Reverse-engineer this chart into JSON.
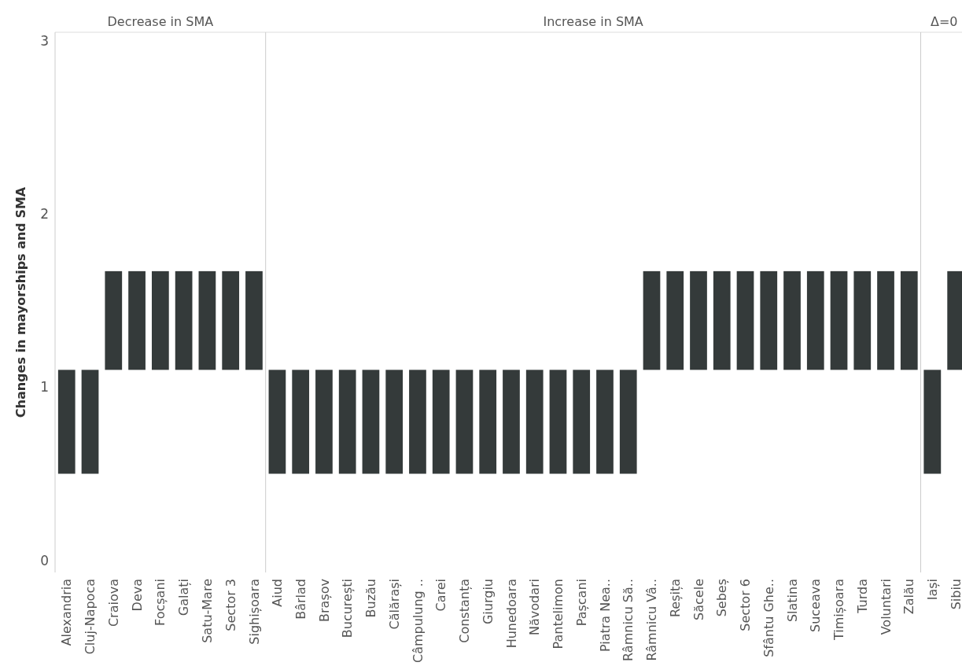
{
  "chart_data": [
    {
      "type": "bar",
      "title": "Decrease in SMA",
      "ylabel": "Changes in mayorships and SMA",
      "categories": [
        "Alexandria",
        "Cluj-Napoca",
        "Craiova",
        "Deva",
        "Focșani",
        "Galați",
        "Satu-Mare",
        "Sector 3",
        "Sighișoara"
      ],
      "base": [
        0.5,
        0.5,
        1.1,
        1.1,
        1.1,
        1.1,
        1.1,
        1.1,
        1.1
      ],
      "values": [
        0.6,
        0.6,
        0.57,
        0.57,
        0.57,
        0.57,
        0.57,
        0.57,
        0.57
      ],
      "color": "#343a3a",
      "ylim": [
        -0.07,
        3.05
      ],
      "yticks": [
        0,
        1,
        2,
        3
      ]
    },
    {
      "type": "bar",
      "title": "Increase in SMA",
      "categories": [
        "Aiud",
        "Bârlad",
        "Brașov",
        "București",
        "Buzău",
        "Călărași",
        "Câmpulung ..",
        "Carei",
        "Constanța",
        "Giurgiu",
        "Hunedoara",
        "Năvodari",
        "Pantelimon",
        "Pașcani",
        "Piatra Nea..",
        "Râmnicu Să..",
        "Râmnicu Vâ..",
        "Reșița",
        "Săcele",
        "Sebeș",
        "Sector 6",
        "Sfântu Ghe..",
        "Slatina",
        "Suceava",
        "Timișoara",
        "Turda",
        "Voluntari",
        "Zalău"
      ],
      "base": [
        0.5,
        0.5,
        0.5,
        0.5,
        0.5,
        0.5,
        0.5,
        0.5,
        0.5,
        0.5,
        0.5,
        0.5,
        0.5,
        0.5,
        0.5,
        0.5,
        1.1,
        1.1,
        1.1,
        1.1,
        1.1,
        1.1,
        1.1,
        1.1,
        1.1,
        1.1,
        1.1,
        1.1
      ],
      "values": [
        0.6,
        0.6,
        0.6,
        0.6,
        0.6,
        0.6,
        0.6,
        0.6,
        0.6,
        0.6,
        0.6,
        0.6,
        0.6,
        0.6,
        0.6,
        0.6,
        0.57,
        0.57,
        0.57,
        0.57,
        0.57,
        0.57,
        0.57,
        0.57,
        0.57,
        0.57,
        0.57,
        0.57
      ],
      "color": "#343a3a",
      "ylim": [
        -0.07,
        3.05
      ],
      "tick_labels": "x"
    },
    {
      "type": "bar",
      "title": "Δ=0",
      "categories": [
        "Iași",
        "Sibiu"
      ],
      "base": [
        0.5,
        1.1
      ],
      "values": [
        0.6,
        0.57
      ],
      "color": "#343a3a",
      "ylim": [
        -0.07,
        3.05
      ],
      "tick_labels": "x"
    }
  ]
}
